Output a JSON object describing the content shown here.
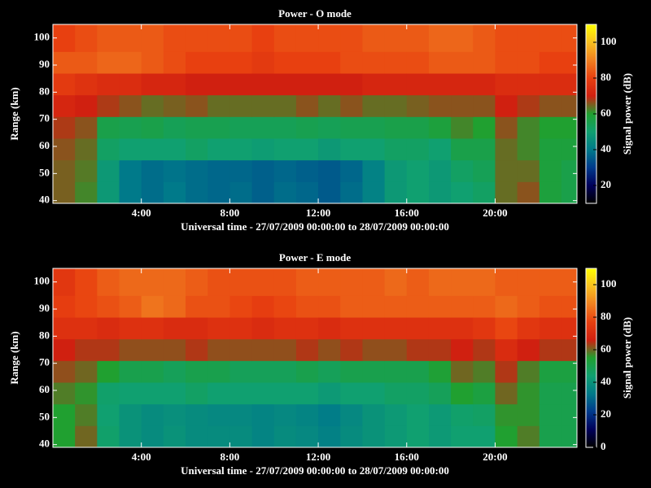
{
  "chart_data": [
    {
      "type": "heatmap",
      "title": "Power - O mode",
      "x_label": "Universal time - 27/07/2009 00:00:00 to 28/07/2009 00:00:00",
      "y_label": "Range (km)",
      "colorbar_label": "Signal power (dB)",
      "x_bins": [
        0,
        1,
        2,
        3,
        4,
        5,
        6,
        7,
        8,
        9,
        10,
        11,
        12,
        13,
        14,
        15,
        16,
        17,
        18,
        19,
        20,
        21,
        22,
        23,
        23.7
      ],
      "y_bins": [
        39,
        47,
        55,
        63,
        71,
        79,
        87,
        95,
        105
      ],
      "values": [
        [
          65,
          62,
          48,
          40,
          38,
          40,
          38,
          37,
          38,
          36,
          38,
          37,
          35,
          38,
          42,
          48,
          50,
          48,
          50,
          52,
          64,
          66,
          58,
          56
        ],
        [
          65,
          63,
          48,
          40,
          38,
          39,
          38,
          37,
          37,
          36,
          37,
          36,
          35,
          37,
          42,
          48,
          50,
          48,
          52,
          54,
          64,
          64,
          58,
          56
        ],
        [
          66,
          64,
          52,
          50,
          50,
          50,
          52,
          50,
          50,
          49,
          50,
          50,
          48,
          50,
          50,
          52,
          52,
          50,
          56,
          56,
          64,
          62,
          58,
          58
        ],
        [
          68,
          66,
          56,
          55,
          56,
          54,
          55,
          55,
          54,
          54,
          54,
          55,
          54,
          55,
          55,
          56,
          56,
          58,
          62,
          60,
          66,
          62,
          60,
          60
        ],
        [
          72,
          70,
          68,
          66,
          64,
          65,
          66,
          64,
          64,
          64,
          64,
          66,
          64,
          66,
          64,
          64,
          65,
          66,
          66,
          66,
          70,
          68,
          66,
          66
        ],
        [
          78,
          76,
          74,
          74,
          72,
          72,
          70,
          70,
          70,
          70,
          70,
          70,
          70,
          70,
          72,
          72,
          72,
          72,
          72,
          72,
          74,
          74,
          74,
          74
        ],
        [
          84,
          84,
          86,
          86,
          84,
          82,
          80,
          80,
          80,
          78,
          80,
          80,
          80,
          82,
          82,
          82,
          82,
          84,
          84,
          84,
          82,
          82,
          80,
          80
        ],
        [
          80,
          82,
          84,
          84,
          84,
          82,
          82,
          82,
          82,
          80,
          82,
          82,
          82,
          82,
          84,
          84,
          84,
          86,
          86,
          84,
          82,
          82,
          82,
          82
        ]
      ],
      "xlim": [
        0,
        23.7
      ],
      "ylim": [
        39,
        105
      ],
      "xticks": [
        {
          "value": 4,
          "label": "4:00"
        },
        {
          "value": 8,
          "label": "8:00"
        },
        {
          "value": 12,
          "label": "12:00"
        },
        {
          "value": 16,
          "label": "16:00"
        },
        {
          "value": 20,
          "label": "20:00"
        }
      ],
      "yticks": [
        40,
        50,
        60,
        70,
        80,
        90,
        100
      ],
      "clim": [
        10,
        110
      ],
      "cticks": [
        20,
        40,
        60,
        80,
        100
      ],
      "colormap": [
        "#000000",
        "#00005a",
        "#003a8c",
        "#007a8a",
        "#10a070",
        "#20a030",
        "#d02010",
        "#e84010",
        "#f08020",
        "#f8c020",
        "#ffff00"
      ]
    },
    {
      "type": "heatmap",
      "title": "Power - E mode",
      "x_label": "Universal time - 27/07/2009 00:00:00 to 28/07/2009 00:00:00",
      "y_label": "Range (km)",
      "colorbar_label": "Signal power (dB)",
      "x_bins": [
        0,
        1,
        2,
        3,
        4,
        5,
        6,
        7,
        8,
        9,
        10,
        11,
        12,
        13,
        14,
        15,
        16,
        17,
        18,
        19,
        20,
        21,
        22,
        23,
        23.7
      ],
      "y_bins": [
        39,
        47,
        55,
        63,
        71,
        79,
        87,
        95,
        105
      ],
      "values": [
        [
          55,
          60,
          45,
          40,
          38,
          40,
          38,
          38,
          38,
          36,
          38,
          37,
          35,
          38,
          40,
          42,
          44,
          42,
          44,
          44,
          55,
          58,
          50,
          50
        ],
        [
          55,
          58,
          44,
          40,
          38,
          39,
          38,
          37,
          37,
          36,
          37,
          36,
          34,
          37,
          40,
          42,
          44,
          42,
          45,
          46,
          56,
          56,
          50,
          50
        ],
        [
          58,
          56,
          45,
          44,
          44,
          44,
          46,
          44,
          44,
          44,
          44,
          44,
          42,
          44,
          44,
          46,
          46,
          48,
          55,
          52,
          60,
          56,
          50,
          50
        ],
        [
          62,
          60,
          55,
          50,
          50,
          48,
          50,
          50,
          48,
          48,
          48,
          50,
          48,
          50,
          50,
          50,
          50,
          54,
          60,
          58,
          64,
          58,
          52,
          52
        ],
        [
          66,
          64,
          64,
          62,
          62,
          62,
          64,
          62,
          62,
          62,
          62,
          64,
          62,
          64,
          62,
          62,
          64,
          64,
          66,
          64,
          70,
          66,
          64,
          64
        ],
        [
          72,
          72,
          70,
          72,
          72,
          70,
          70,
          72,
          72,
          70,
          72,
          72,
          70,
          72,
          72,
          72,
          72,
          72,
          72,
          74,
          78,
          74,
          72,
          72
        ],
        [
          76,
          78,
          80,
          82,
          86,
          84,
          80,
          80,
          78,
          76,
          78,
          80,
          80,
          82,
          82,
          82,
          82,
          82,
          82,
          82,
          84,
          82,
          80,
          80
        ],
        [
          74,
          78,
          82,
          84,
          84,
          84,
          82,
          80,
          80,
          80,
          80,
          82,
          82,
          82,
          82,
          84,
          82,
          84,
          84,
          84,
          82,
          82,
          82,
          82
        ]
      ],
      "xlim": [
        0,
        23.7
      ],
      "ylim": [
        39,
        105
      ],
      "xticks": [
        {
          "value": 4,
          "label": "4:00"
        },
        {
          "value": 8,
          "label": "8:00"
        },
        {
          "value": 12,
          "label": "12:00"
        },
        {
          "value": 16,
          "label": "16:00"
        },
        {
          "value": 20,
          "label": "20:00"
        }
      ],
      "yticks": [
        40,
        50,
        60,
        70,
        80,
        90,
        100
      ],
      "clim": [
        0,
        110
      ],
      "cticks": [
        0,
        20,
        40,
        60,
        80,
        100
      ],
      "colormap": [
        "#000000",
        "#00005a",
        "#003a8c",
        "#007a8a",
        "#10a070",
        "#20a030",
        "#d02010",
        "#e84010",
        "#f08020",
        "#f8c020",
        "#ffff00"
      ]
    }
  ]
}
